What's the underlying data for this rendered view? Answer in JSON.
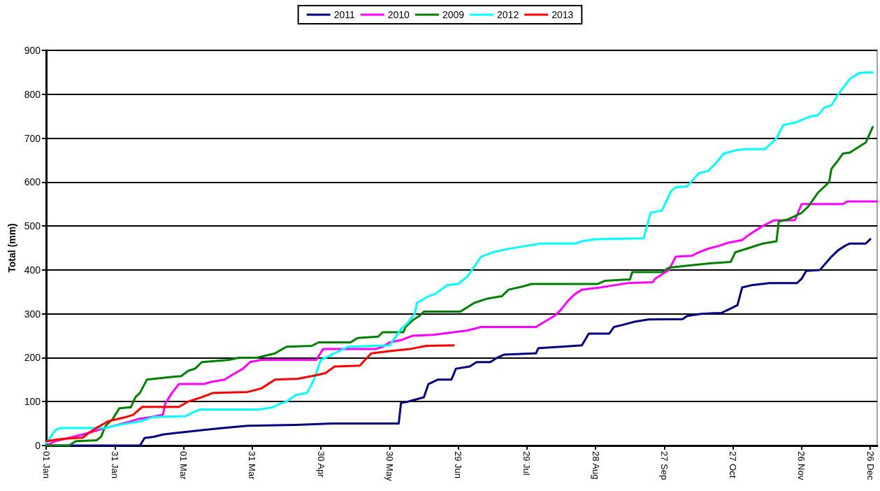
{
  "chart_data": {
    "type": "line",
    "ylabel": "Total (mm)",
    "xlim": [
      "--01-01",
      "--12-29"
    ],
    "ylim": [
      0,
      900
    ],
    "xticks": [
      {
        "value": "--01-01",
        "label": "01 Jan"
      },
      {
        "value": "--01-31",
        "label": "31 Jan"
      },
      {
        "value": "--03-01",
        "label": "01 Mar"
      },
      {
        "value": "--03-31",
        "label": "31 Mar"
      },
      {
        "value": "--04-30",
        "label": "30 Apr"
      },
      {
        "value": "--05-30",
        "label": "30 May"
      },
      {
        "value": "--06-29",
        "label": "29 Jun"
      },
      {
        "value": "--07-29",
        "label": "29 Jul"
      },
      {
        "value": "--08-28",
        "label": "28 Aug"
      },
      {
        "value": "--09-27",
        "label": "27 Sep"
      },
      {
        "value": "--10-27",
        "label": "27 Oct"
      },
      {
        "value": "--11-26",
        "label": "26 Nov"
      },
      {
        "value": "--12-26",
        "label": "26 Dec"
      }
    ],
    "yticks": [
      0,
      100,
      200,
      300,
      400,
      500,
      600,
      700,
      800,
      900
    ],
    "grid": "y",
    "legend": "top",
    "marker": "none",
    "line_style": "solid",
    "series": [
      {
        "name": "2011",
        "color": "#000080",
        "x": [
          "--01-01",
          "--02-11",
          "--02-13",
          "--02-17",
          "--02-21",
          "--02-29",
          "--03-09",
          "--03-18",
          "--03-29",
          "--04-19",
          "--05-05",
          "--06-03",
          "--06-04",
          "--06-07",
          "--06-14",
          "--06-16",
          "--06-20",
          "--06-26",
          "--06-28",
          "--07-04",
          "--07-07",
          "--07-13",
          "--07-16",
          "--07-19",
          "--08-02",
          "--08-03",
          "--08-13",
          "--08-22",
          "--08-25",
          "--09-03",
          "--09-05",
          "--09-09",
          "--09-14",
          "--09-20",
          "--10-05",
          "--10-07",
          "--10-13",
          "--10-22",
          "--10-26",
          "--10-29",
          "--10-31",
          "--11-04",
          "--11-12",
          "--11-24",
          "--11-26",
          "--11-28",
          "--12-04",
          "--12-09",
          "--12-12",
          "--12-15",
          "--12-17",
          "--12-24",
          "--12-26"
        ],
        "values": [
          0,
          0,
          17,
          20,
          25,
          30,
          35,
          40,
          45,
          47,
          50,
          50,
          97,
          100,
          110,
          140,
          150,
          150,
          175,
          180,
          190,
          190,
          200,
          207,
          210,
          222,
          225,
          228,
          255,
          255,
          270,
          275,
          282,
          287,
          288,
          295,
          300,
          302,
          312,
          320,
          360,
          365,
          370,
          370,
          380,
          398,
          400,
          430,
          445,
          455,
          460,
          460,
          470
        ]
      },
      {
        "name": "2010",
        "color": "#ff00ff",
        "x": [
          "--01-01",
          "--01-05",
          "--01-17",
          "--01-27",
          "--02-07",
          "--02-10",
          "--02-16",
          "--02-21",
          "--02-22",
          "--02-25",
          "--02-28",
          "--03-10",
          "--03-13",
          "--03-19",
          "--03-22",
          "--03-27",
          "--03-30",
          "--04-04",
          "--04-28",
          "--05-01",
          "--05-24",
          "--05-27",
          "--05-30",
          "--06-04",
          "--06-09",
          "--06-18",
          "--06-27",
          "--07-03",
          "--07-09",
          "--08-02",
          "--08-05",
          "--08-10",
          "--08-13",
          "--08-16",
          "--08-19",
          "--08-22",
          "--08-30",
          "--09-05",
          "--09-11",
          "--09-22",
          "--09-23",
          "--09-26",
          "--09-29",
          "--10-02",
          "--10-09",
          "--10-12",
          "--10-16",
          "--10-21",
          "--10-25",
          "--10-31",
          "--11-03",
          "--11-06",
          "--11-09",
          "--11-14",
          "--11-23",
          "--11-26",
          "--11-30",
          "--12-14",
          "--12-16",
          "--12-29"
        ],
        "values": [
          0,
          10,
          25,
          40,
          55,
          60,
          65,
          70,
          95,
          120,
          140,
          140,
          145,
          150,
          160,
          175,
          190,
          195,
          195,
          220,
          220,
          225,
          235,
          240,
          250,
          252,
          258,
          262,
          270,
          270,
          280,
          295,
          310,
          330,
          345,
          355,
          360,
          365,
          370,
          372,
          380,
          390,
          400,
          430,
          432,
          440,
          448,
          455,
          462,
          468,
          480,
          490,
          500,
          513,
          513,
          550,
          550,
          550,
          556,
          556
        ]
      },
      {
        "name": "2009",
        "color": "#008000",
        "x": [
          "--01-01",
          "--01-11",
          "--01-14",
          "--01-23",
          "--01-25",
          "--01-27",
          "--01-30",
          "--02-02",
          "--02-06",
          "--02-07",
          "--02-09",
          "--02-11",
          "--02-14",
          "--02-26",
          "--02-29",
          "--03-03",
          "--03-06",
          "--03-09",
          "--03-21",
          "--03-25",
          "--04-02",
          "--04-10",
          "--04-15",
          "--04-26",
          "--04-29",
          "--05-13",
          "--05-16",
          "--05-25",
          "--05-27",
          "--06-05",
          "--06-06",
          "--06-09",
          "--06-12",
          "--06-14",
          "--06-30",
          "--07-03",
          "--07-06",
          "--07-12",
          "--07-18",
          "--07-21",
          "--07-27",
          "--07-31",
          "--08-29",
          "--09-01",
          "--09-10",
          "--09-12",
          "--09-13",
          "--09-26",
          "--09-29",
          "--10-08",
          "--10-17",
          "--10-26",
          "--10-28",
          "--11-09",
          "--11-15",
          "--11-16",
          "--11-20",
          "--11-22",
          "--11-26",
          "--11-29",
          "--12-03",
          "--12-08",
          "--12-09",
          "--12-12",
          "--12-14",
          "--12-17",
          "--12-24",
          "--12-27"
        ],
        "values": [
          0,
          0,
          10,
          12,
          20,
          45,
          60,
          85,
          87,
          87,
          110,
          120,
          150,
          157,
          158,
          170,
          175,
          190,
          195,
          200,
          200,
          210,
          225,
          227,
          235,
          235,
          245,
          248,
          258,
          258,
          270,
          285,
          295,
          305,
          305,
          315,
          325,
          335,
          340,
          355,
          362,
          368,
          368,
          375,
          378,
          378,
          395,
          395,
          405,
          410,
          415,
          418,
          440,
          460,
          465,
          510,
          515,
          520,
          530,
          545,
          575,
          600,
          630,
          650,
          665,
          667,
          690,
          725
        ]
      },
      {
        "name": "2012",
        "color": "#00ffff",
        "x": [
          "--01-01",
          "--01-05",
          "--01-07",
          "--01-27",
          "--01-31",
          "--02-05",
          "--02-11",
          "--02-17",
          "--03-02",
          "--03-05",
          "--03-08",
          "--04-03",
          "--04-09",
          "--04-12",
          "--04-15",
          "--04-19",
          "--04-24",
          "--04-27",
          "--04-30",
          "--05-06",
          "--05-12",
          "--05-30",
          "--06-04",
          "--06-07",
          "--06-10",
          "--06-11",
          "--06-16",
          "--06-19",
          "--06-24",
          "--06-29",
          "--07-03",
          "--07-09",
          "--07-14",
          "--07-20",
          "--07-29",
          "--08-04",
          "--08-19",
          "--08-22",
          "--08-28",
          "--09-18",
          "--09-21",
          "--09-26",
          "--09-30",
          "--10-02",
          "--10-07",
          "--10-12",
          "--10-16",
          "--10-19",
          "--10-23",
          "--10-28",
          "--11-01",
          "--11-10",
          "--11-15",
          "--11-18",
          "--11-23",
          "--11-30",
          "--12-03",
          "--12-06",
          "--12-09",
          "--12-12",
          "--12-17",
          "--12-21",
          "--12-24",
          "--12-27"
        ],
        "values": [
          5,
          35,
          40,
          40,
          45,
          50,
          55,
          65,
          67,
          75,
          82,
          82,
          87,
          95,
          100,
          115,
          120,
          150,
          195,
          210,
          225,
          228,
          265,
          280,
          300,
          325,
          340,
          345,
          365,
          368,
          385,
          430,
          440,
          447,
          455,
          460,
          460,
          465,
          470,
          472,
          530,
          535,
          580,
          588,
          590,
          620,
          625,
          640,
          665,
          672,
          675,
          675,
          700,
          730,
          735,
          750,
          752,
          770,
          775,
          800,
          835,
          848,
          850,
          850
        ]
      },
      {
        "name": "2013",
        "color": "#ff0000",
        "x": [
          "--01-01",
          "--01-08",
          "--01-17",
          "--01-20",
          "--01-23",
          "--01-28",
          "--02-01",
          "--02-05",
          "--02-08",
          "--02-12",
          "--02-28",
          "--03-03",
          "--03-09",
          "--03-14",
          "--03-29",
          "--04-04",
          "--04-10",
          "--04-20",
          "--04-26",
          "--05-02",
          "--05-06",
          "--05-17",
          "--05-22",
          "--05-30",
          "--06-08",
          "--06-15",
          "--06-27"
        ],
        "values": [
          10,
          15,
          18,
          30,
          40,
          55,
          60,
          65,
          70,
          88,
          88,
          100,
          110,
          120,
          122,
          130,
          150,
          152,
          158,
          165,
          180,
          182,
          210,
          215,
          220,
          227,
          228
        ]
      }
    ]
  }
}
